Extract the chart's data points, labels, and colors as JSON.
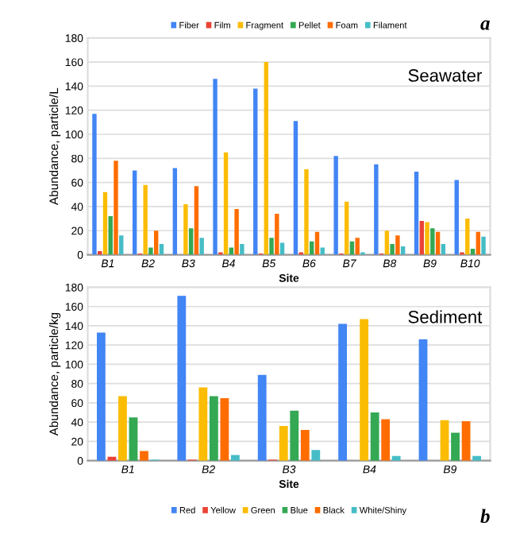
{
  "chart_data": [
    {
      "type": "bar",
      "categories": [
        "B1",
        "B2",
        "B3",
        "B4",
        "B5",
        "B6",
        "B7",
        "B8",
        "B9",
        "B10"
      ],
      "xlabel": "Site",
      "ylabel": "Abundance, particle/L",
      "ylim": [
        0,
        180
      ],
      "yticks": [
        0,
        20,
        40,
        60,
        80,
        100,
        120,
        140,
        160,
        180
      ],
      "grid": "y",
      "legend": "top",
      "annotations": [
        "Seawater",
        "a"
      ],
      "series": [
        {
          "name": "Fiber",
          "color": "#4285f4",
          "values": [
            117,
            70,
            72,
            146,
            138,
            111,
            82,
            75,
            69,
            62
          ]
        },
        {
          "name": "Film",
          "color": "#ea4335",
          "values": [
            3,
            1,
            0,
            2,
            1,
            2,
            1,
            1,
            28,
            2
          ]
        },
        {
          "name": "Fragment",
          "color": "#fbbc04",
          "values": [
            52,
            58,
            42,
            85,
            160,
            71,
            44,
            20,
            27,
            30
          ]
        },
        {
          "name": "Pellet",
          "color": "#34a853",
          "values": [
            32,
            6,
            22,
            6,
            14,
            11,
            11,
            9,
            22,
            5
          ]
        },
        {
          "name": "Foam",
          "color": "#ff6d01",
          "values": [
            78,
            20,
            57,
            38,
            34,
            19,
            14,
            16,
            19,
            19
          ]
        },
        {
          "name": "Filament",
          "color": "#46bdc6",
          "values": [
            16,
            9,
            14,
            9,
            10,
            6,
            2,
            7,
            9,
            15
          ]
        }
      ]
    },
    {
      "type": "bar",
      "categories": [
        "B1",
        "B2",
        "B3",
        "B4",
        "B9"
      ],
      "xlabel": "Site",
      "ylabel": "Abundance, particle/kg",
      "ylim": [
        0,
        180
      ],
      "yticks": [
        0,
        20,
        40,
        60,
        80,
        100,
        120,
        140,
        160,
        180
      ],
      "grid": "y",
      "legend": "bottom",
      "annotations": [
        "Sediment",
        "b"
      ],
      "series": [
        {
          "name": "Red",
          "color": "#4285f4",
          "values": [
            133,
            171,
            89,
            142,
            126
          ]
        },
        {
          "name": "Yellow",
          "color": "#ea4335",
          "values": [
            4,
            1,
            1,
            0,
            0
          ]
        },
        {
          "name": "Green",
          "color": "#fbbc04",
          "values": [
            67,
            76,
            36,
            147,
            42
          ]
        },
        {
          "name": "Blue",
          "color": "#34a853",
          "values": [
            45,
            67,
            52,
            50,
            29
          ]
        },
        {
          "name": "Black",
          "color": "#ff6d01",
          "values": [
            10,
            65,
            32,
            43,
            41
          ]
        },
        {
          "name": "White/Shiny",
          "color": "#46bdc6",
          "values": [
            1,
            6,
            11,
            5,
            5
          ]
        }
      ]
    }
  ]
}
